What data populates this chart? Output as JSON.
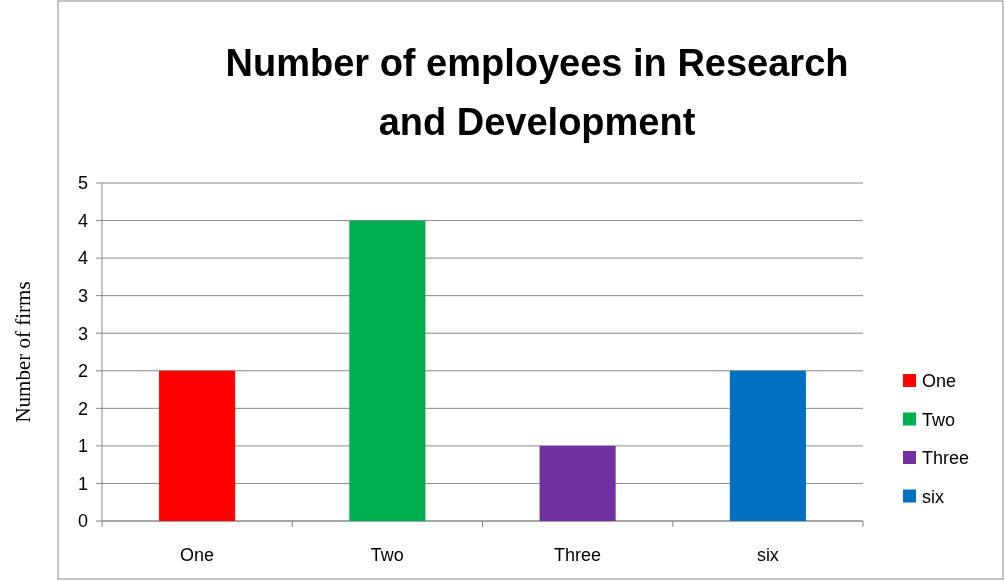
{
  "chart_data": {
    "type": "bar",
    "title": "Number of employees in Research and Development",
    "ylabel": "Number of firms",
    "categories": [
      "One",
      "Two",
      "Three",
      "six"
    ],
    "series": [
      {
        "name": "One",
        "color": "#ff0000",
        "values": [
          2,
          null,
          null,
          null
        ]
      },
      {
        "name": "Two",
        "color": "#00b050",
        "values": [
          null,
          4,
          null,
          null
        ]
      },
      {
        "name": "Three",
        "color": "#7030a0",
        "values": [
          null,
          null,
          1,
          null
        ]
      },
      {
        "name": "six",
        "color": "#0070c0",
        "values": [
          null,
          null,
          null,
          2
        ]
      }
    ],
    "ylim": [
      0,
      4.5
    ],
    "yticks": [
      0,
      {
        "value": 0.5,
        "label": "1"
      },
      1,
      {
        "value": 1.5,
        "label": "2"
      },
      2,
      {
        "value": 2.5,
        "label": "3"
      },
      3,
      {
        "value": 3.5,
        "label": "4"
      },
      4,
      {
        "value": 4.5,
        "label": "5"
      }
    ],
    "grid": "y",
    "legend": "right"
  }
}
